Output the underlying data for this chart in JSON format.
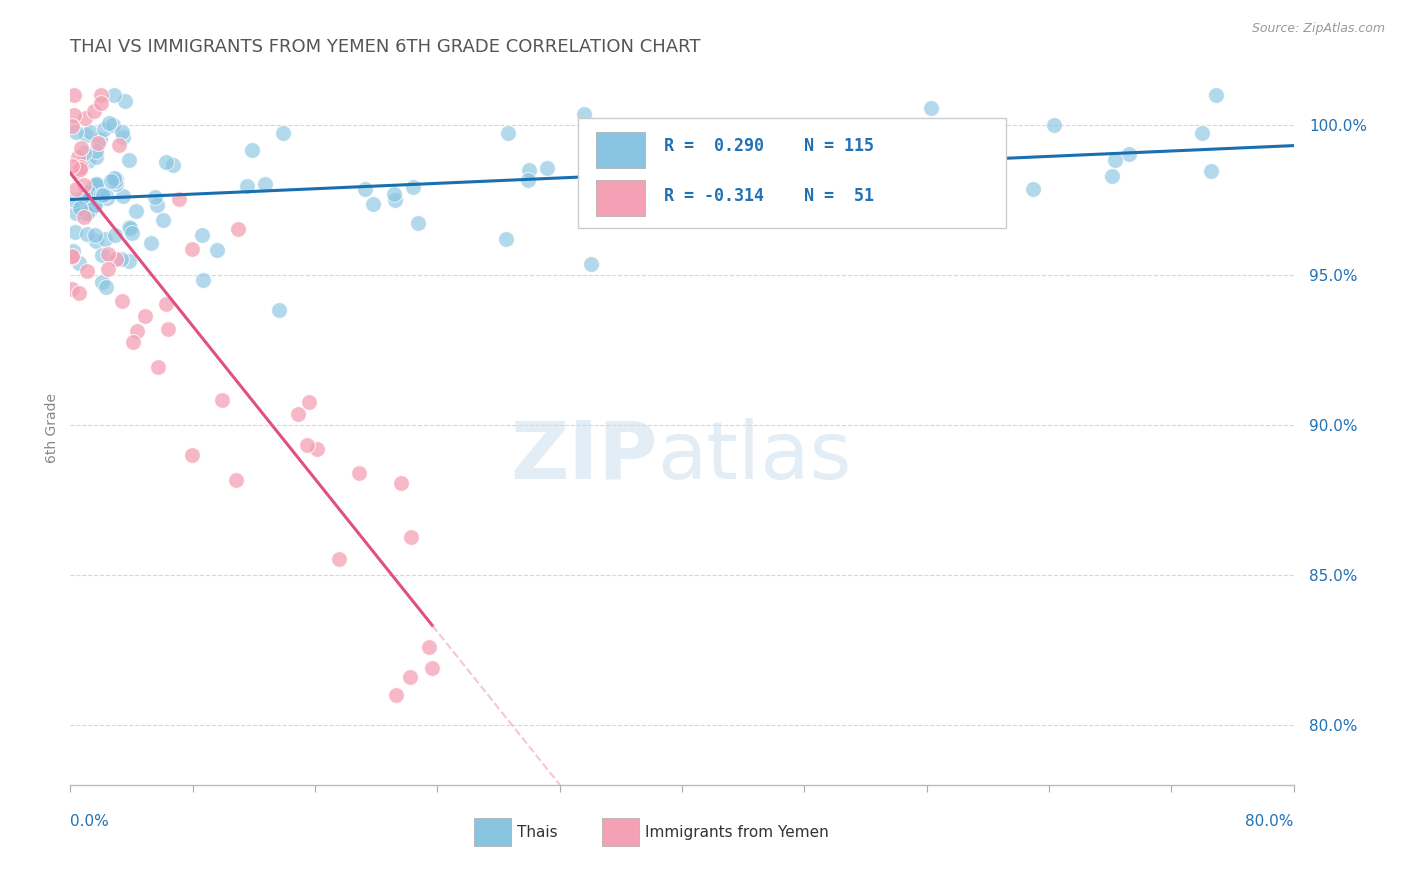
{
  "title": "THAI VS IMMIGRANTS FROM YEMEN 6TH GRADE CORRELATION CHART",
  "source": "Source: ZipAtlas.com",
  "ylabel": "6th Grade",
  "y_ticks": [
    80.0,
    85.0,
    90.0,
    95.0,
    100.0
  ],
  "y_tick_labels": [
    "80.0%",
    "85.0%",
    "90.0%",
    "95.0%",
    "100.0%"
  ],
  "x_range": [
    0.0,
    80.0
  ],
  "y_range": [
    78.0,
    101.8
  ],
  "blue_color": "#89c4e1",
  "pink_color": "#f4a0b5",
  "line_blue": "#1a6faf",
  "line_pink": "#e05080",
  "line_pink_dash": "#f0a0b8",
  "title_color": "#555555",
  "axis_label_color": "#2171b5",
  "background_color": "#ffffff",
  "grid_color": "#cccccc",
  "thai_n": 115,
  "yemen_n": 51
}
